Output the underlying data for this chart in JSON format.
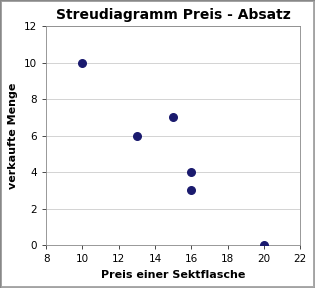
{
  "title": "Streudiagramm Preis - Absatz",
  "xlabel": "Preis einer Sektflasche",
  "ylabel": "verkaufte Menge",
  "x": [
    10,
    13,
    15,
    16,
    16,
    20
  ],
  "y": [
    10,
    6,
    7,
    4,
    3,
    0
  ],
  "dot_color": "#1a1a6e",
  "dot_size": 30,
  "xlim": [
    8,
    22
  ],
  "ylim": [
    0,
    12
  ],
  "xticks": [
    8,
    10,
    12,
    14,
    16,
    18,
    20,
    22
  ],
  "yticks": [
    0,
    2,
    4,
    6,
    8,
    10,
    12
  ],
  "background_color": "#ffffff",
  "plot_bg_color": "#ffffff",
  "title_fontsize": 10,
  "label_fontsize": 8,
  "tick_fontsize": 7.5
}
